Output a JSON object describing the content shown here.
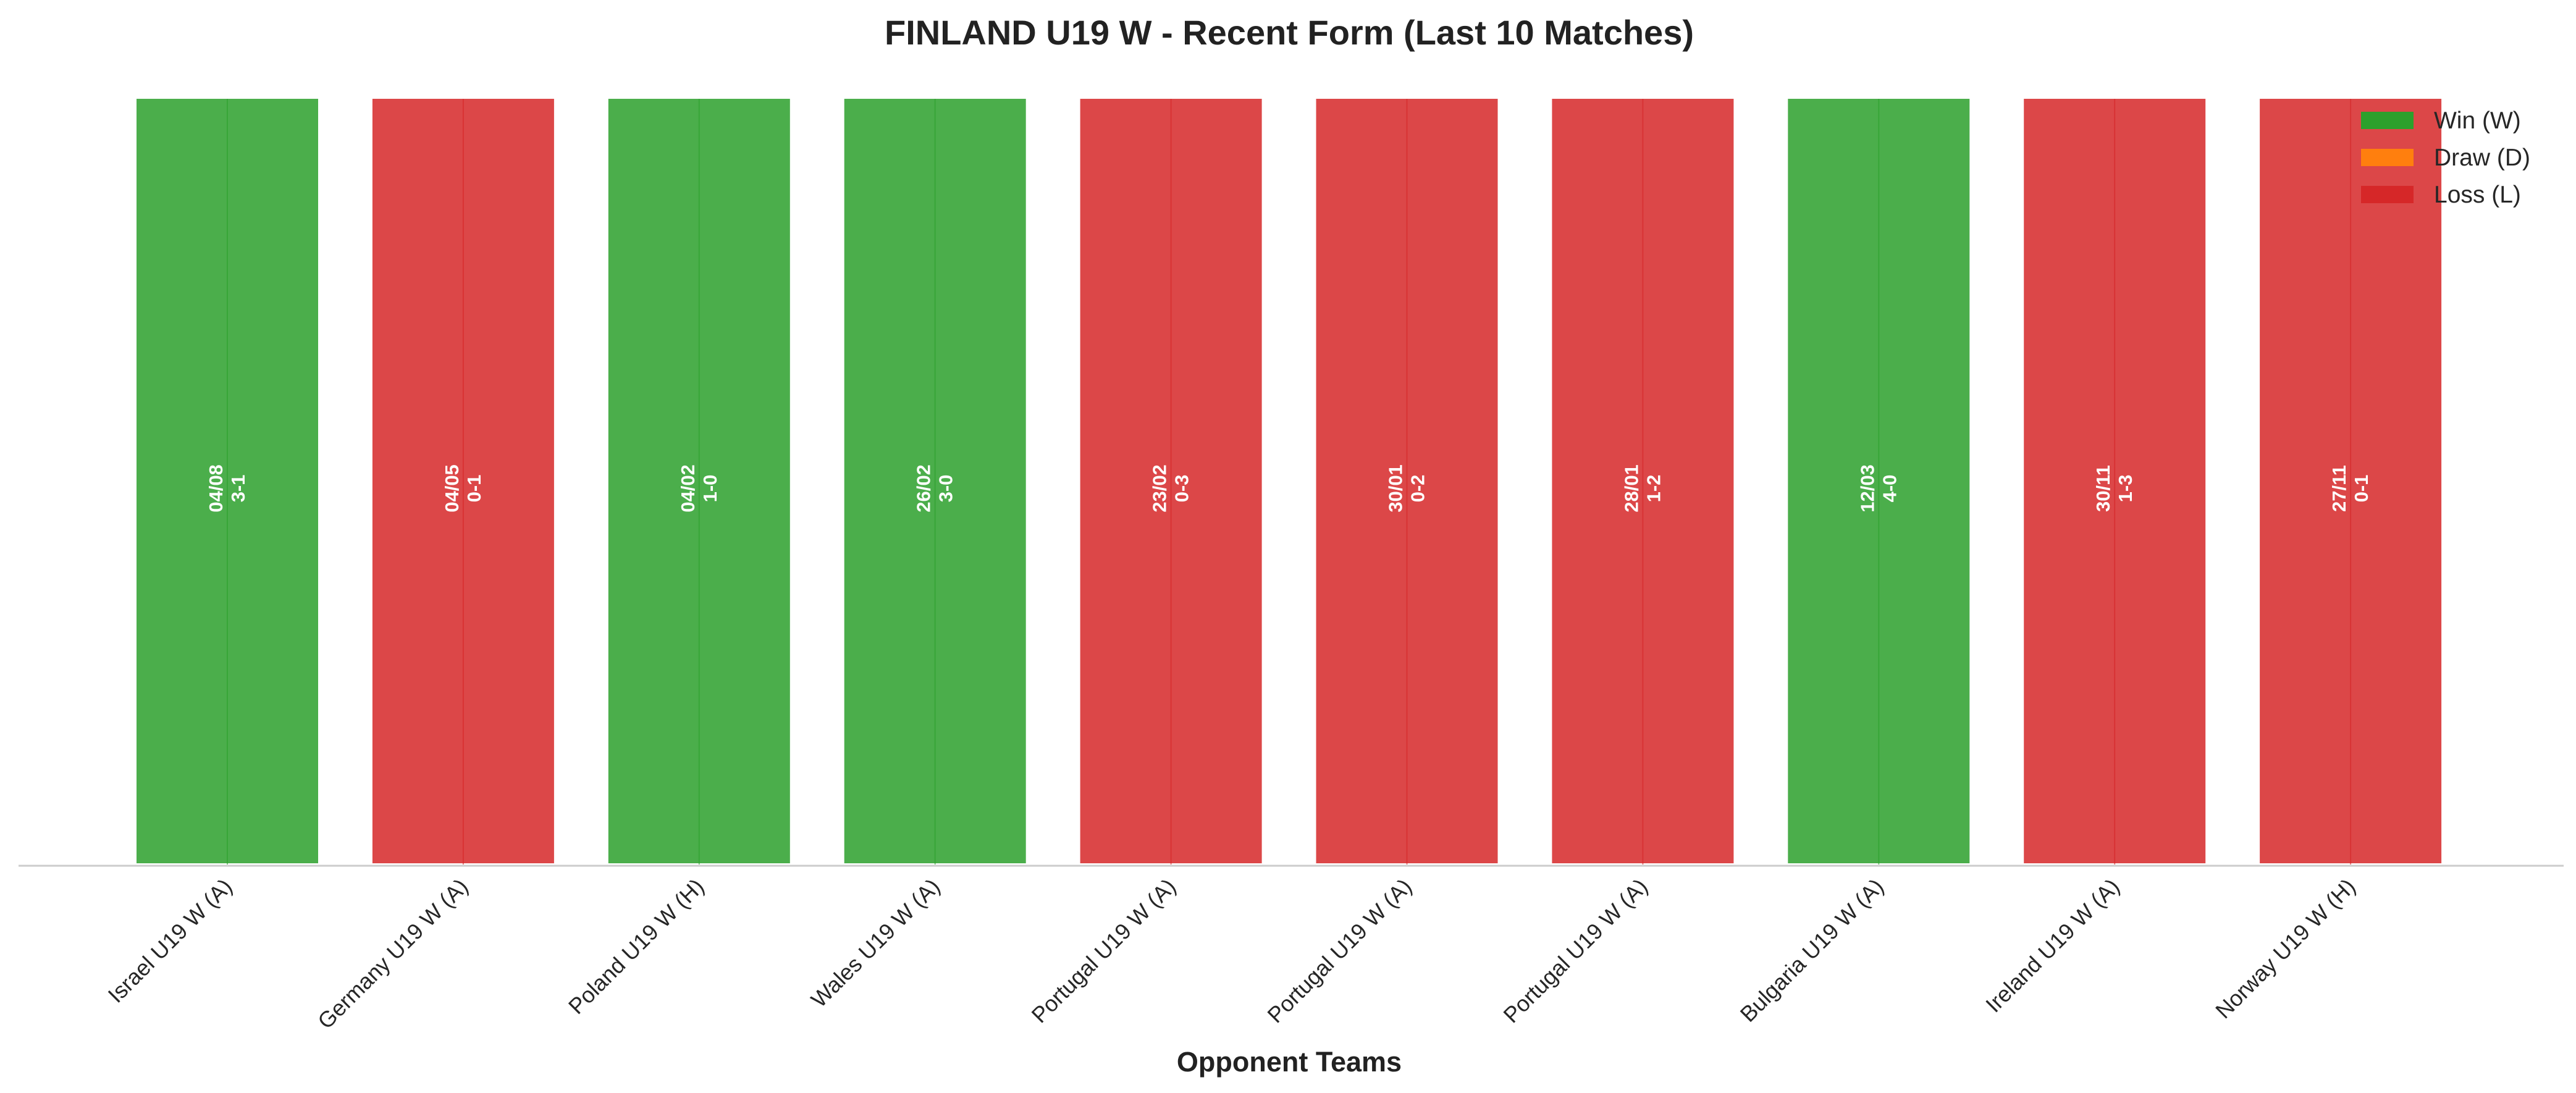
{
  "chart_data": {
    "type": "bar",
    "title": "FINLAND U19 W - Recent Form (Last 10 Matches)",
    "xlabel": "Opponent Teams",
    "ylabel": "",
    "grid": false,
    "legend_position": "top-right",
    "categories": [
      "Israel U19 W (A)",
      "Germany U19 W (A)",
      "Poland U19 W (H)",
      "Wales U19 W (A)",
      "Portugal U19 W (A)",
      "Portugal U19 W (A)",
      "Portugal U19 W (A)",
      "Bulgaria U19 W (A)",
      "Ireland U19 W (A)",
      "Norway U19 W (H)"
    ],
    "values": [
      1,
      1,
      1,
      1,
      1,
      1,
      1,
      1,
      1,
      1
    ],
    "ylim": [
      0,
      1
    ],
    "results": [
      "W",
      "L",
      "W",
      "W",
      "L",
      "L",
      "L",
      "W",
      "L",
      "L"
    ],
    "dates": [
      "04/08",
      "04/05",
      "04/02",
      "26/02",
      "23/02",
      "30/01",
      "28/01",
      "12/03",
      "30/11",
      "27/11"
    ],
    "scores": [
      "3-1",
      "0-1",
      "1-0",
      "3-0",
      "0-3",
      "0-2",
      "1-2",
      "4-0",
      "1-3",
      "0-1"
    ],
    "legend": [
      {
        "key": "W",
        "label": "Win (W)",
        "color": "#2ca02c"
      },
      {
        "key": "D",
        "label": "Draw (D)",
        "color": "#ff7f0e"
      },
      {
        "key": "L",
        "label": "Loss (L)",
        "color": "#d62728"
      }
    ],
    "colors": {
      "W": "#2ca02c",
      "D": "#ff7f0e",
      "L": "#d62728"
    }
  }
}
